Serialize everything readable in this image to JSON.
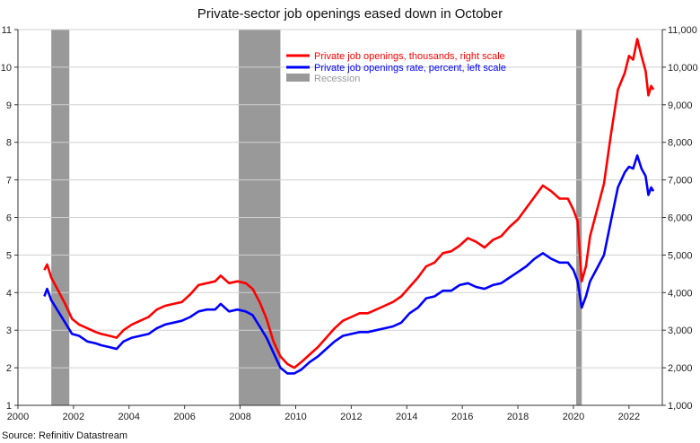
{
  "chart_data": {
    "type": "line",
    "title": "Private-sector job openings eased down in October",
    "source": "Source: Refinitiv Datastream",
    "x_range": [
      2000,
      2023.2
    ],
    "x_ticks": [
      "2000",
      "2002",
      "2004",
      "2006",
      "2008",
      "2010",
      "2012",
      "2014",
      "2016",
      "2018",
      "2020",
      "2022"
    ],
    "y_left": {
      "range": [
        1,
        11
      ],
      "ticks": [
        "1",
        "2",
        "3",
        "4",
        "5",
        "6",
        "7",
        "8",
        "9",
        "10",
        "11"
      ]
    },
    "y_right": {
      "range": [
        1000,
        11000
      ],
      "ticks": [
        "1,000",
        "2,000",
        "3,000",
        "4,000",
        "5,000",
        "6,000",
        "7,000",
        "8,000",
        "9,000",
        "10,000",
        "11,000"
      ]
    },
    "grid": true,
    "legend_position": "top-right",
    "colors": {
      "thousands": "#ff0000",
      "rate": "#0000ff",
      "recession": "#999999"
    },
    "recessions": [
      {
        "start": 2001.2,
        "end": 2001.85
      },
      {
        "start": 2007.95,
        "end": 2009.45
      },
      {
        "start": 2020.1,
        "end": 2020.3
      }
    ],
    "series": [
      {
        "name": "Private job openings, thousands, right scale",
        "axis": "right",
        "points": [
          [
            2000.95,
            4600
          ],
          [
            2001.05,
            4750
          ],
          [
            2001.2,
            4400
          ],
          [
            2001.45,
            4050
          ],
          [
            2001.7,
            3700
          ],
          [
            2001.95,
            3300
          ],
          [
            2002.2,
            3150
          ],
          [
            2002.5,
            3050
          ],
          [
            2002.8,
            2950
          ],
          [
            2003.0,
            2900
          ],
          [
            2003.3,
            2850
          ],
          [
            2003.55,
            2800
          ],
          [
            2003.8,
            3000
          ],
          [
            2004.1,
            3150
          ],
          [
            2004.4,
            3250
          ],
          [
            2004.7,
            3350
          ],
          [
            2005.0,
            3550
          ],
          [
            2005.3,
            3650
          ],
          [
            2005.6,
            3700
          ],
          [
            2005.9,
            3750
          ],
          [
            2006.2,
            3950
          ],
          [
            2006.5,
            4200
          ],
          [
            2006.8,
            4250
          ],
          [
            2007.1,
            4300
          ],
          [
            2007.3,
            4450
          ],
          [
            2007.6,
            4250
          ],
          [
            2007.9,
            4300
          ],
          [
            2008.2,
            4250
          ],
          [
            2008.45,
            4100
          ],
          [
            2008.7,
            3750
          ],
          [
            2008.95,
            3300
          ],
          [
            2009.2,
            2700
          ],
          [
            2009.45,
            2300
          ],
          [
            2009.7,
            2100
          ],
          [
            2009.95,
            2000
          ],
          [
            2010.2,
            2150
          ],
          [
            2010.5,
            2350
          ],
          [
            2010.8,
            2550
          ],
          [
            2011.1,
            2800
          ],
          [
            2011.4,
            3050
          ],
          [
            2011.7,
            3250
          ],
          [
            2012.0,
            3350
          ],
          [
            2012.3,
            3450
          ],
          [
            2012.6,
            3450
          ],
          [
            2012.9,
            3550
          ],
          [
            2013.2,
            3650
          ],
          [
            2013.5,
            3750
          ],
          [
            2013.8,
            3900
          ],
          [
            2014.1,
            4150
          ],
          [
            2014.4,
            4400
          ],
          [
            2014.7,
            4700
          ],
          [
            2015.0,
            4800
          ],
          [
            2015.3,
            5050
          ],
          [
            2015.6,
            5100
          ],
          [
            2015.9,
            5250
          ],
          [
            2016.2,
            5450
          ],
          [
            2016.5,
            5350
          ],
          [
            2016.8,
            5200
          ],
          [
            2017.1,
            5400
          ],
          [
            2017.4,
            5500
          ],
          [
            2017.7,
            5750
          ],
          [
            2018.0,
            5950
          ],
          [
            2018.3,
            6250
          ],
          [
            2018.6,
            6550
          ],
          [
            2018.9,
            6850
          ],
          [
            2019.2,
            6700
          ],
          [
            2019.5,
            6500
          ],
          [
            2019.8,
            6500
          ],
          [
            2020.0,
            6200
          ],
          [
            2020.15,
            5900
          ],
          [
            2020.3,
            4300
          ],
          [
            2020.45,
            4700
          ],
          [
            2020.6,
            5500
          ],
          [
            2020.85,
            6200
          ],
          [
            2021.1,
            6900
          ],
          [
            2021.35,
            8200
          ],
          [
            2021.6,
            9400
          ],
          [
            2021.85,
            9850
          ],
          [
            2022.0,
            10300
          ],
          [
            2022.15,
            10200
          ],
          [
            2022.3,
            10750
          ],
          [
            2022.45,
            10300
          ],
          [
            2022.6,
            9900
          ],
          [
            2022.7,
            9250
          ],
          [
            2022.8,
            9500
          ],
          [
            2022.88,
            9400
          ]
        ]
      },
      {
        "name": "Private job openings rate, percent, left scale",
        "axis": "left",
        "points": [
          [
            2000.95,
            3.9
          ],
          [
            2001.05,
            4.1
          ],
          [
            2001.2,
            3.8
          ],
          [
            2001.45,
            3.5
          ],
          [
            2001.7,
            3.2
          ],
          [
            2001.95,
            2.9
          ],
          [
            2002.2,
            2.85
          ],
          [
            2002.5,
            2.7
          ],
          [
            2002.8,
            2.65
          ],
          [
            2003.0,
            2.6
          ],
          [
            2003.3,
            2.55
          ],
          [
            2003.55,
            2.5
          ],
          [
            2003.8,
            2.7
          ],
          [
            2004.1,
            2.8
          ],
          [
            2004.4,
            2.85
          ],
          [
            2004.7,
            2.9
          ],
          [
            2005.0,
            3.05
          ],
          [
            2005.3,
            3.15
          ],
          [
            2005.6,
            3.2
          ],
          [
            2005.9,
            3.25
          ],
          [
            2006.2,
            3.35
          ],
          [
            2006.5,
            3.5
          ],
          [
            2006.8,
            3.55
          ],
          [
            2007.1,
            3.55
          ],
          [
            2007.3,
            3.7
          ],
          [
            2007.6,
            3.5
          ],
          [
            2007.9,
            3.55
          ],
          [
            2008.2,
            3.5
          ],
          [
            2008.45,
            3.4
          ],
          [
            2008.7,
            3.1
          ],
          [
            2008.95,
            2.8
          ],
          [
            2009.2,
            2.4
          ],
          [
            2009.45,
            2.0
          ],
          [
            2009.7,
            1.85
          ],
          [
            2009.95,
            1.85
          ],
          [
            2010.2,
            1.95
          ],
          [
            2010.5,
            2.15
          ],
          [
            2010.8,
            2.3
          ],
          [
            2011.1,
            2.5
          ],
          [
            2011.4,
            2.7
          ],
          [
            2011.7,
            2.85
          ],
          [
            2012.0,
            2.9
          ],
          [
            2012.3,
            2.95
          ],
          [
            2012.6,
            2.95
          ],
          [
            2012.9,
            3.0
          ],
          [
            2013.2,
            3.05
          ],
          [
            2013.5,
            3.1
          ],
          [
            2013.8,
            3.2
          ],
          [
            2014.1,
            3.45
          ],
          [
            2014.4,
            3.6
          ],
          [
            2014.7,
            3.85
          ],
          [
            2015.0,
            3.9
          ],
          [
            2015.3,
            4.05
          ],
          [
            2015.6,
            4.05
          ],
          [
            2015.9,
            4.2
          ],
          [
            2016.2,
            4.25
          ],
          [
            2016.5,
            4.15
          ],
          [
            2016.8,
            4.1
          ],
          [
            2017.1,
            4.2
          ],
          [
            2017.4,
            4.25
          ],
          [
            2017.7,
            4.4
          ],
          [
            2018.0,
            4.55
          ],
          [
            2018.3,
            4.7
          ],
          [
            2018.6,
            4.9
          ],
          [
            2018.9,
            5.05
          ],
          [
            2019.2,
            4.9
          ],
          [
            2019.5,
            4.8
          ],
          [
            2019.8,
            4.8
          ],
          [
            2020.0,
            4.6
          ],
          [
            2020.15,
            4.3
          ],
          [
            2020.3,
            3.6
          ],
          [
            2020.45,
            3.9
          ],
          [
            2020.6,
            4.3
          ],
          [
            2020.85,
            4.65
          ],
          [
            2021.1,
            5.0
          ],
          [
            2021.35,
            5.9
          ],
          [
            2021.6,
            6.8
          ],
          [
            2021.85,
            7.2
          ],
          [
            2022.0,
            7.35
          ],
          [
            2022.15,
            7.3
          ],
          [
            2022.3,
            7.65
          ],
          [
            2022.45,
            7.3
          ],
          [
            2022.6,
            7.1
          ],
          [
            2022.7,
            6.6
          ],
          [
            2022.8,
            6.8
          ],
          [
            2022.88,
            6.7
          ]
        ]
      },
      {
        "name": "Recession",
        "axis": "none"
      }
    ]
  }
}
